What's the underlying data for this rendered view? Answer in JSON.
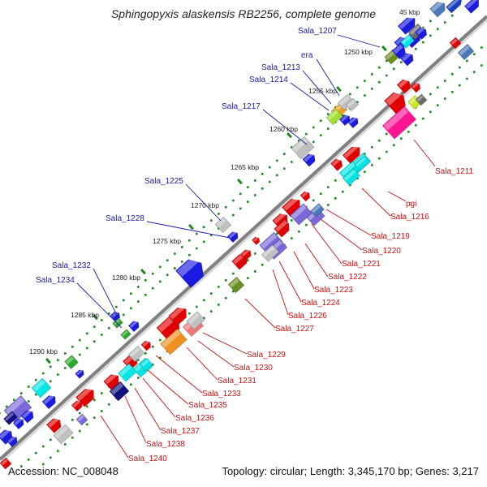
{
  "title": "Sphingopyxis alaskensis RB2256, complete genome",
  "accession": "Accession: NC_008048",
  "summary": "Topology: circular; Length: 3,345,170 bp; Genes: 3,217",
  "colors": {
    "backbone": "#8a8a8a",
    "tick": "#1f8a1f",
    "upper_label": "#1a1aaa",
    "lower_label": "#cc1111"
  },
  "scale_labels": [
    "45 kbp",
    "1250 kbp",
    "1255 kbp",
    "1260 kbp",
    "1265 kbp",
    "1270 kbp",
    "1275 kbp",
    "1280 kbp",
    "1285 kbp",
    "1290 kbp"
  ],
  "upper_genes": [
    "Sala_1207",
    "era",
    "Sala_1213",
    "Sala_1214",
    "Sala_1217",
    "Sala_1225",
    "Sala_1228",
    "Sala_1232",
    "Sala_1234"
  ],
  "lower_genes": [
    "Sala_1211",
    "pgi",
    "Sala_1216",
    "Sala_1219",
    "Sala_1220",
    "Sala_1221",
    "Sala_1222",
    "Sala_1223",
    "Sala_1224",
    "Sala_1226",
    "Sala_1227",
    "Sala_1229",
    "Sala_1230",
    "Sala_1231",
    "Sala_1233",
    "Sala_1235",
    "Sala_1236",
    "Sala_1237",
    "Sala_1238",
    "Sala_1240"
  ]
}
